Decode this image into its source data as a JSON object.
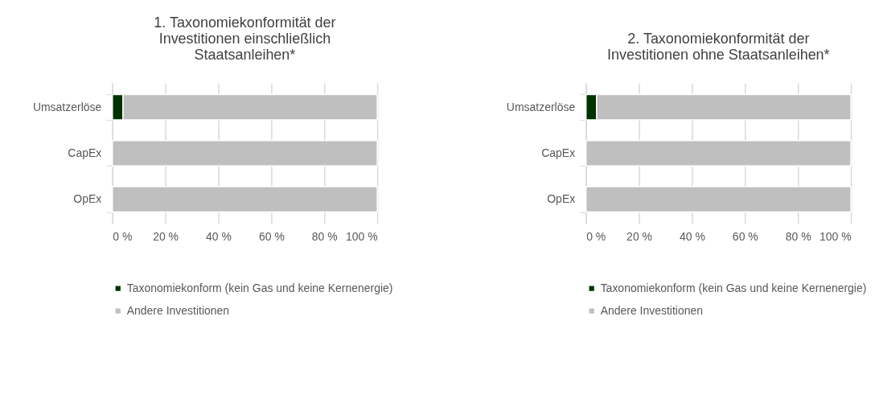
{
  "chart_data": [
    {
      "type": "bar",
      "orientation": "horizontal",
      "stacked": true,
      "title": "1. Taxonomiekonformität der Investitionen einschließlich Staatsanleihen*",
      "categories": [
        "Umsatzerlöse",
        "CapEx",
        "OpEx"
      ],
      "xlim": [
        0,
        100
      ],
      "xticks": [
        {
          "value": 0,
          "label": "0 %"
        },
        {
          "value": 20,
          "label": "20 %"
        },
        {
          "value": 40,
          "label": "40 %"
        },
        {
          "value": 60,
          "label": "60 %"
        },
        {
          "value": 80,
          "label": "80 %"
        },
        {
          "value": 100,
          "label": "100 %"
        }
      ],
      "grid": "x",
      "legend": "bottom",
      "series": [
        {
          "name": "Taxonomiekonform (kein Gas und keine Kernenergie)",
          "color": "#003300",
          "values": [
            4,
            0,
            0
          ]
        },
        {
          "name": "Andere Investitionen",
          "color": "#bfbfbf",
          "values": [
            96,
            100,
            100
          ]
        }
      ]
    },
    {
      "type": "bar",
      "orientation": "horizontal",
      "stacked": true,
      "title": "2. Taxonomiekonformität der Investitionen ohne Staatsanleihen*",
      "categories": [
        "Umsatzerlöse",
        "CapEx",
        "OpEx"
      ],
      "xlim": [
        0,
        100
      ],
      "xticks": [
        {
          "value": 0,
          "label": "0 %"
        },
        {
          "value": 20,
          "label": "20 %"
        },
        {
          "value": 40,
          "label": "40 %"
        },
        {
          "value": 60,
          "label": "60 %"
        },
        {
          "value": 80,
          "label": "80 %"
        },
        {
          "value": 100,
          "label": "100 %"
        }
      ],
      "grid": "x",
      "legend": "bottom",
      "series": [
        {
          "name": "Taxonomiekonform (kein Gas und keine Kernenergie)",
          "color": "#003300",
          "values": [
            4,
            0,
            0
          ]
        },
        {
          "name": "Andere Investitionen",
          "color": "#bfbfbf",
          "values": [
            96,
            100,
            100
          ]
        }
      ]
    }
  ]
}
